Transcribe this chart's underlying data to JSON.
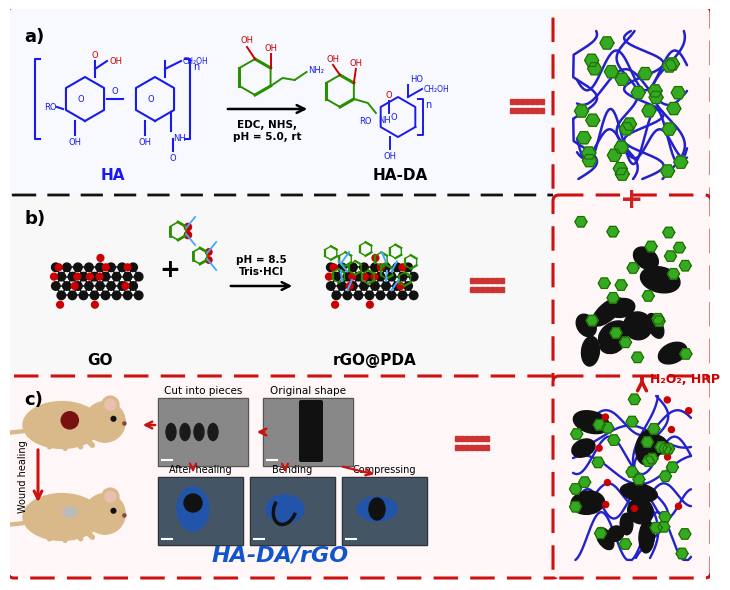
{
  "bg_color": "#ffffff",
  "panel_a_label": "a)",
  "panel_b_label": "b)",
  "panel_c_label": "c)",
  "ha_label": "HA",
  "ha_da_label": "HA-DA",
  "go_label": "GO",
  "rgo_label": "rGO@PDA",
  "ha_da_rgo_label": "HA-DA/rGO",
  "reaction_a": "EDC, NHS,\npH = 5.0, rt",
  "reaction_b": "pH = 8.5\nTris·HCl",
  "crosslink_label": "H₂O₂, HRP",
  "wound_healing_label": "Wound healing",
  "cut_label": "Cut into pieces",
  "original_label": "Original shape",
  "after_healing_label": "After healing",
  "bending_label": "Bending",
  "compressing_label": "Compressing",
  "blue_dash_color": "#2288ee",
  "black_dash_color": "#111111",
  "red_dash_color": "#cc1111",
  "green_node_color": "#33aa22",
  "blue_line_color": "#2222cc",
  "red_plus_color": "#cc2222",
  "red_arrow_color": "#cc1111",
  "ha_text_color": "#1a1aff",
  "ha_da_rgo_color": "#1155cc",
  "crosslink_color": "#cc0000",
  "chem_blue": "#1a1aee",
  "chem_green": "#2a9000",
  "chem_red": "#cc0000"
}
